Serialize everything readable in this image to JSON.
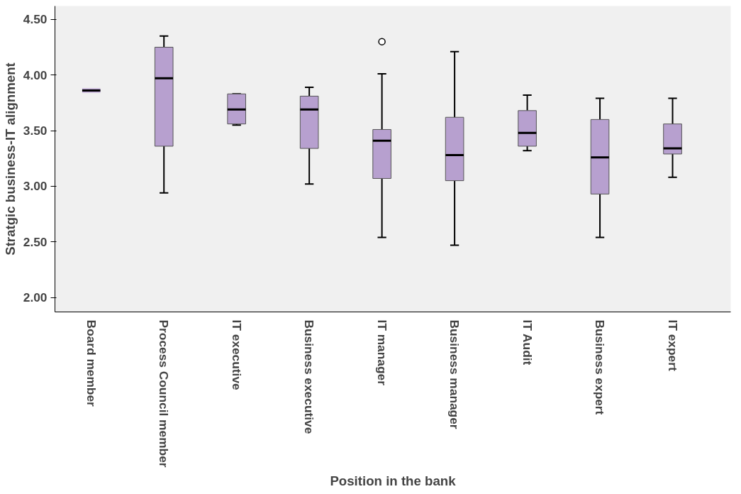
{
  "chart_data": {
    "type": "box",
    "xlabel": "Position in the bank",
    "ylabel": "Stratgic business-IT alignment",
    "color": "#b7a0cf",
    "categories": [
      "Board member",
      "Process Council member",
      "IT executive",
      "Business executive",
      "IT manager",
      "Business manager",
      "IT Audit",
      "Business expert",
      "IT expert"
    ],
    "boxes": [
      {
        "low": 3.86,
        "q1": 3.86,
        "median": 3.86,
        "q3": 3.86,
        "high": 3.86
      },
      {
        "low": 2.94,
        "q1": 3.36,
        "median": 3.97,
        "q3": 4.25,
        "high": 4.35
      },
      {
        "low": 3.55,
        "q1": 3.56,
        "median": 3.69,
        "q3": 3.83,
        "high": 3.83
      },
      {
        "low": 3.02,
        "q1": 3.34,
        "median": 3.69,
        "q3": 3.81,
        "high": 3.89
      },
      {
        "low": 2.54,
        "q1": 3.07,
        "median": 3.41,
        "q3": 3.51,
        "high": 4.01,
        "outliers": [
          4.3
        ]
      },
      {
        "low": 2.47,
        "q1": 3.05,
        "median": 3.28,
        "q3": 3.62,
        "high": 4.21
      },
      {
        "low": 3.32,
        "q1": 3.36,
        "median": 3.48,
        "q3": 3.68,
        "high": 3.82
      },
      {
        "low": 2.54,
        "q1": 2.93,
        "median": 3.26,
        "q3": 3.6,
        "high": 3.79
      },
      {
        "low": 3.08,
        "q1": 3.29,
        "median": 3.34,
        "q3": 3.56,
        "high": 3.79
      }
    ],
    "ylim": [
      1.87,
      4.62
    ],
    "yticks": [
      {
        "value": 2,
        "label": "2.00"
      },
      {
        "value": 2.5,
        "label": "2.50"
      },
      {
        "value": 3,
        "label": "3.00"
      },
      {
        "value": 3.5,
        "label": "3.50"
      },
      {
        "value": 4,
        "label": "4.00"
      },
      {
        "value": 4.5,
        "label": "4.50"
      }
    ]
  }
}
